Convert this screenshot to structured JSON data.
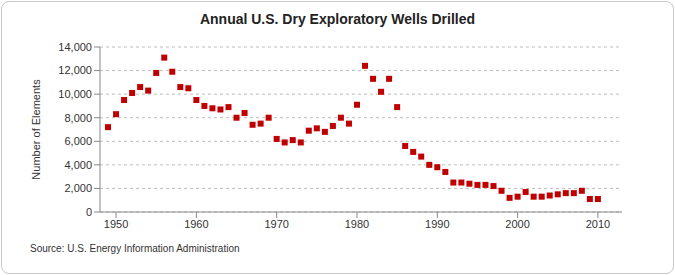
{
  "chart_data": {
    "type": "scatter",
    "title": "Annual U.S. Dry Exploratory Wells Drilled",
    "y_label": "Number of Elements",
    "source": "Source: U.S. Energy Information Administration",
    "x": [
      1949,
      1950,
      1951,
      1952,
      1953,
      1954,
      1955,
      1956,
      1957,
      1958,
      1959,
      1960,
      1961,
      1962,
      1963,
      1964,
      1965,
      1966,
      1967,
      1968,
      1969,
      1970,
      1971,
      1972,
      1973,
      1974,
      1975,
      1976,
      1977,
      1978,
      1979,
      1980,
      1981,
      1982,
      1983,
      1984,
      1985,
      1986,
      1987,
      1988,
      1989,
      1990,
      1991,
      1992,
      1993,
      1994,
      1995,
      1996,
      1997,
      1998,
      1999,
      2000,
      2001,
      2002,
      2003,
      2004,
      2005,
      2006,
      2007,
      2008,
      2009,
      2010
    ],
    "values": [
      7200,
      8300,
      9500,
      10100,
      10600,
      10300,
      11800,
      13100,
      11900,
      10600,
      10500,
      9500,
      9000,
      8800,
      8700,
      8900,
      8000,
      8400,
      7400,
      7500,
      8000,
      6200,
      5900,
      6100,
      5900,
      6900,
      7100,
      6800,
      7300,
      8000,
      7500,
      9100,
      12400,
      11300,
      10200,
      11300,
      8900,
      5600,
      5100,
      4700,
      4000,
      3800,
      3400,
      2500,
      2500,
      2400,
      2300,
      2300,
      2200,
      1800,
      1200,
      1300,
      1700,
      1300,
      1300,
      1400,
      1500,
      1600,
      1600,
      1800,
      1100,
      1100
    ],
    "color": "#c00000",
    "marker": "square",
    "xlim": [
      1948,
      2013
    ],
    "xticks": [
      1950,
      1960,
      1970,
      1980,
      1990,
      2000,
      2010
    ],
    "ylim": [
      0,
      14000
    ],
    "yticks": [
      0,
      {
        "value": 2000,
        "label": "2,000"
      },
      {
        "value": 4000,
        "label": "4,000"
      },
      {
        "value": 6000,
        "label": "6,000"
      },
      {
        "value": 8000,
        "label": "8,000"
      },
      {
        "value": 10000,
        "label": "10,000"
      },
      {
        "value": 12000,
        "label": "12,000"
      },
      {
        "value": 14000,
        "label": "14,000"
      }
    ],
    "grid": true
  }
}
